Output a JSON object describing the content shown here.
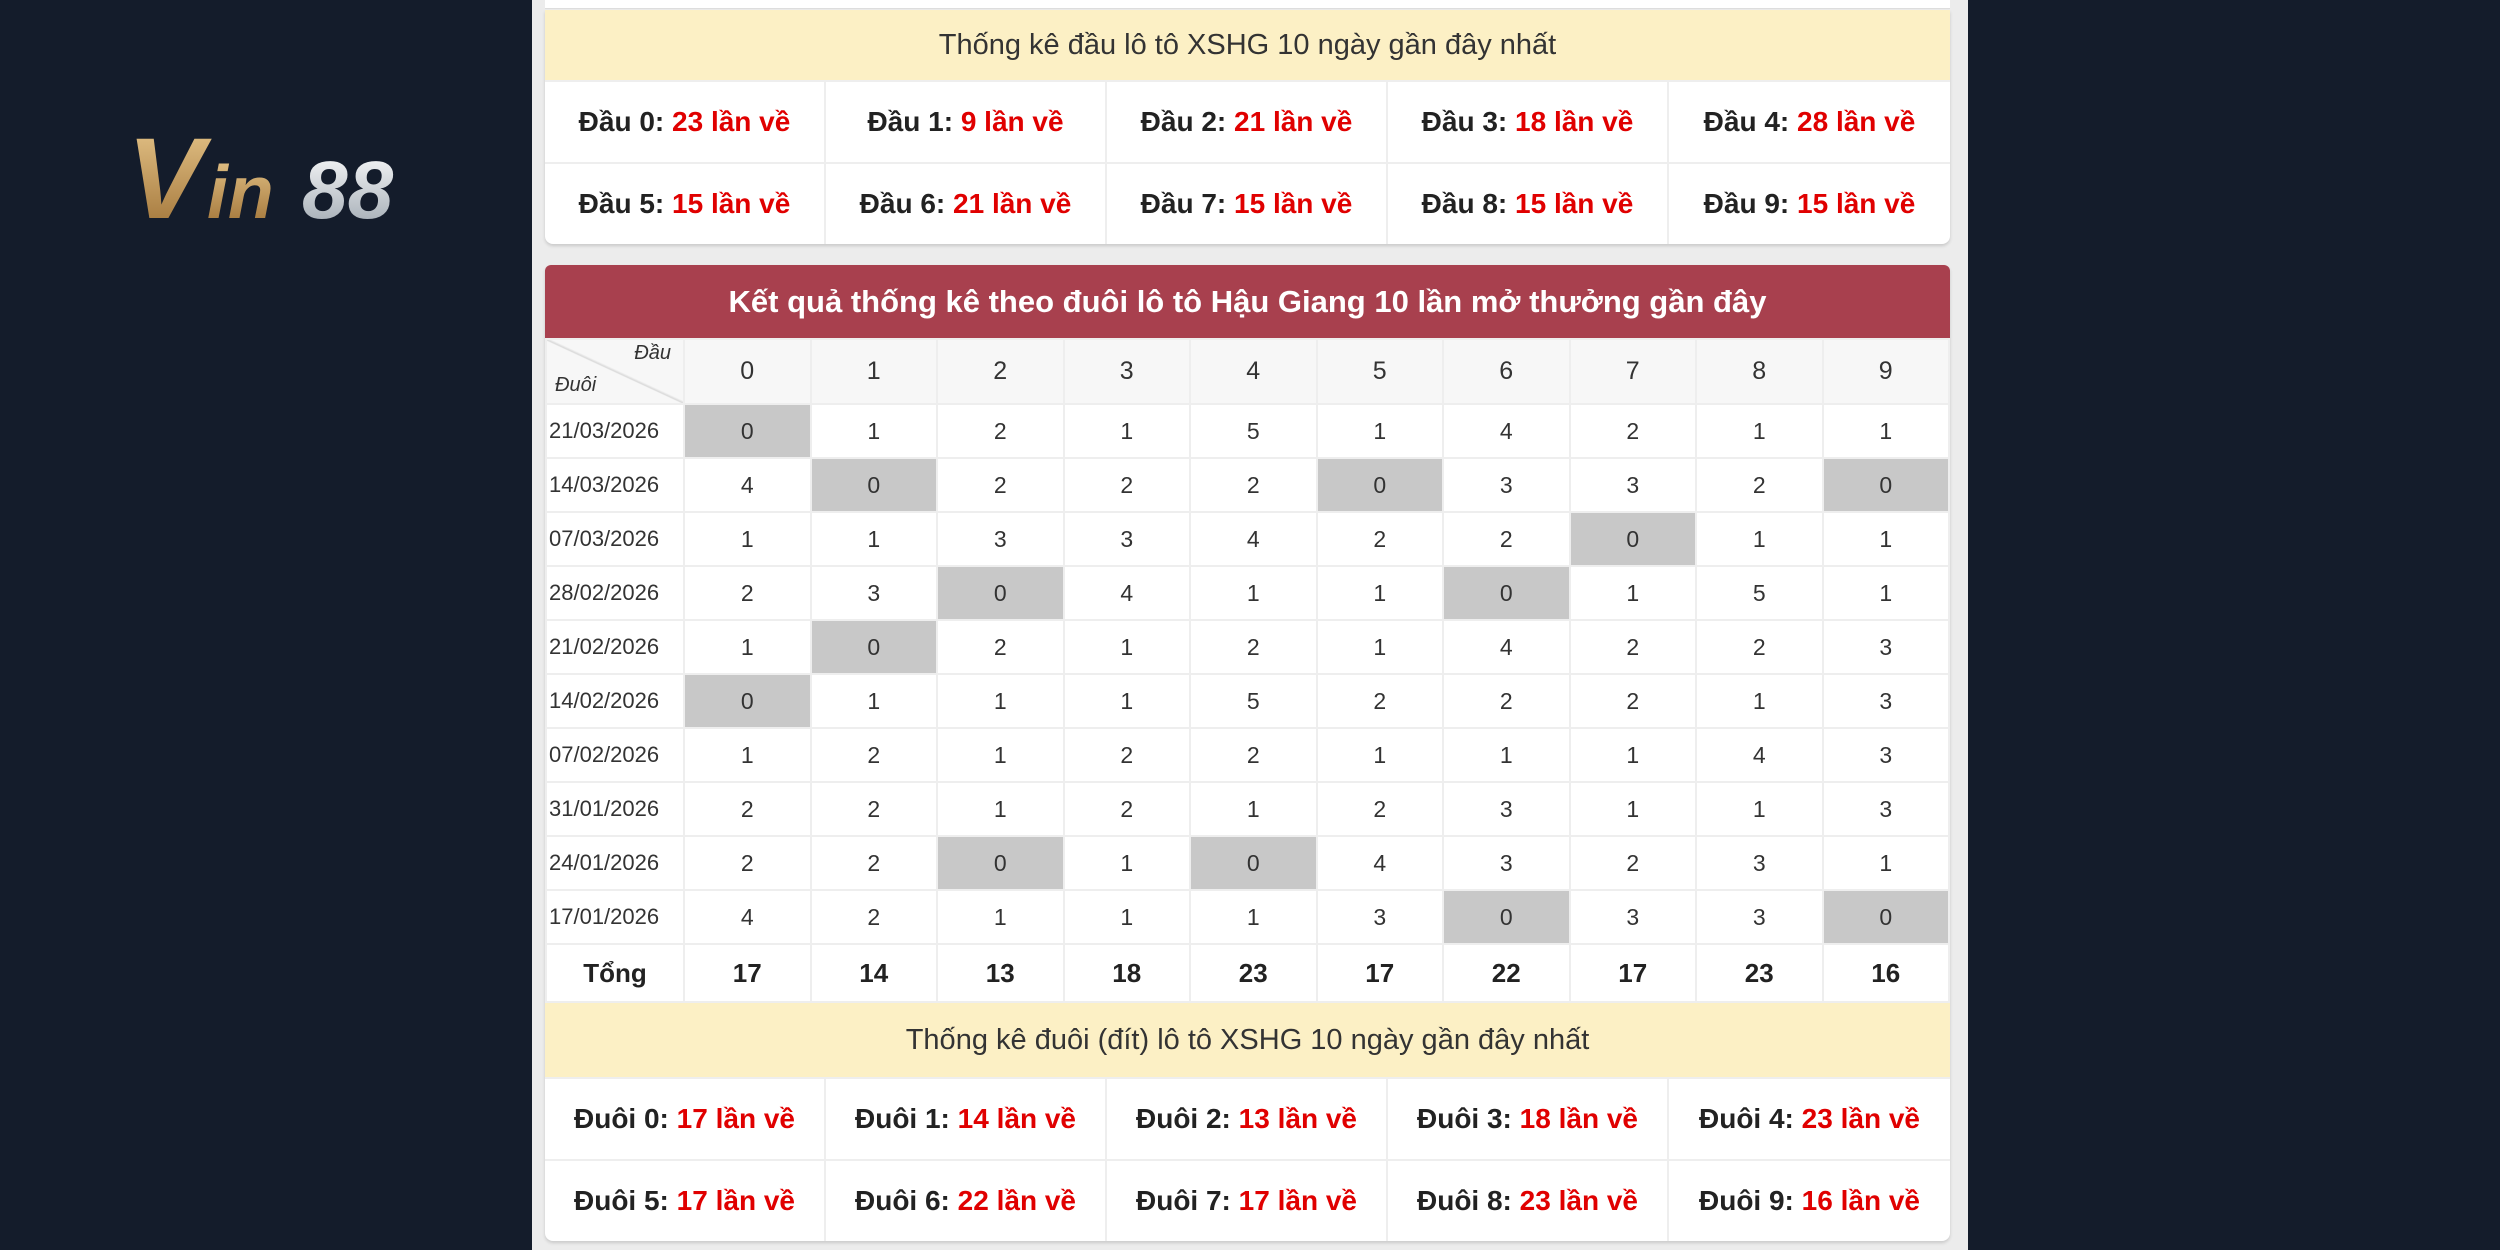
{
  "brand": {
    "logo_text": "Vin88",
    "colors": {
      "gold": "#c9a060",
      "silver": "#d8dde3",
      "background": "#141c2b"
    }
  },
  "dau_summary": {
    "title": "Thống kê đầu lô tô XSHG 10 ngày gần đây nhất",
    "items": [
      {
        "label": "Đầu 0:",
        "value": "23 lần về"
      },
      {
        "label": "Đầu 1:",
        "value": "9 lần về"
      },
      {
        "label": "Đầu 2:",
        "value": "21 lần về"
      },
      {
        "label": "Đầu 3:",
        "value": "18 lần về"
      },
      {
        "label": "Đầu 4:",
        "value": "28 lần về"
      },
      {
        "label": "Đầu 5:",
        "value": "15 lần về"
      },
      {
        "label": "Đầu 6:",
        "value": "21 lần về"
      },
      {
        "label": "Đầu 7:",
        "value": "15 lần về"
      },
      {
        "label": "Đầu 8:",
        "value": "15 lần về"
      },
      {
        "label": "Đầu 9:",
        "value": "15 lần về"
      }
    ]
  },
  "duoi_table": {
    "title": "Kết quả thống kê theo đuôi lô tô Hậu Giang 10 lần mở thưởng gần đây",
    "corner_top": "Đầu",
    "corner_bottom": "Đuôi",
    "columns": [
      "0",
      "1",
      "2",
      "3",
      "4",
      "5",
      "6",
      "7",
      "8",
      "9"
    ],
    "rows": [
      {
        "date": "21/03/2026",
        "values": [
          "0",
          "1",
          "2",
          "1",
          "5",
          "1",
          "4",
          "2",
          "1",
          "1"
        ]
      },
      {
        "date": "14/03/2026",
        "values": [
          "4",
          "0",
          "2",
          "2",
          "2",
          "0",
          "3",
          "3",
          "2",
          "0"
        ]
      },
      {
        "date": "07/03/2026",
        "values": [
          "1",
          "1",
          "3",
          "3",
          "4",
          "2",
          "2",
          "0",
          "1",
          "1"
        ]
      },
      {
        "date": "28/02/2026",
        "values": [
          "2",
          "3",
          "0",
          "4",
          "1",
          "1",
          "0",
          "1",
          "5",
          "1"
        ]
      },
      {
        "date": "21/02/2026",
        "values": [
          "1",
          "0",
          "2",
          "1",
          "2",
          "1",
          "4",
          "2",
          "2",
          "3"
        ]
      },
      {
        "date": "14/02/2026",
        "values": [
          "0",
          "1",
          "1",
          "1",
          "5",
          "2",
          "2",
          "2",
          "1",
          "3"
        ]
      },
      {
        "date": "07/02/2026",
        "values": [
          "1",
          "2",
          "1",
          "2",
          "2",
          "1",
          "1",
          "1",
          "4",
          "3"
        ]
      },
      {
        "date": "31/01/2026",
        "values": [
          "2",
          "2",
          "1",
          "2",
          "1",
          "2",
          "3",
          "1",
          "1",
          "3"
        ]
      },
      {
        "date": "24/01/2026",
        "values": [
          "2",
          "2",
          "0",
          "1",
          "0",
          "4",
          "3",
          "2",
          "3",
          "1"
        ]
      },
      {
        "date": "17/01/2026",
        "values": [
          "4",
          "2",
          "1",
          "1",
          "1",
          "3",
          "0",
          "3",
          "3",
          "0"
        ]
      }
    ],
    "total_label": "Tổng",
    "totals": [
      "17",
      "14",
      "13",
      "18",
      "23",
      "17",
      "22",
      "17",
      "23",
      "16"
    ]
  },
  "duoi_summary": {
    "title": "Thống kê đuôi (đít) lô tô XSHG 10 ngày gần đây nhất",
    "items": [
      {
        "label": "Đuôi 0:",
        "value": "17 lần về"
      },
      {
        "label": "Đuôi 1:",
        "value": "14 lần về"
      },
      {
        "label": "Đuôi 2:",
        "value": "13 lần về"
      },
      {
        "label": "Đuôi 3:",
        "value": "18 lần về"
      },
      {
        "label": "Đuôi 4:",
        "value": "23 lần về"
      },
      {
        "label": "Đuôi 5:",
        "value": "17 lần về"
      },
      {
        "label": "Đuôi 6:",
        "value": "22 lần về"
      },
      {
        "label": "Đuôi 7:",
        "value": "17 lần về"
      },
      {
        "label": "Đuôi 8:",
        "value": "23 lần về"
      },
      {
        "label": "Đuôi 9:",
        "value": "16 lần về"
      }
    ]
  }
}
